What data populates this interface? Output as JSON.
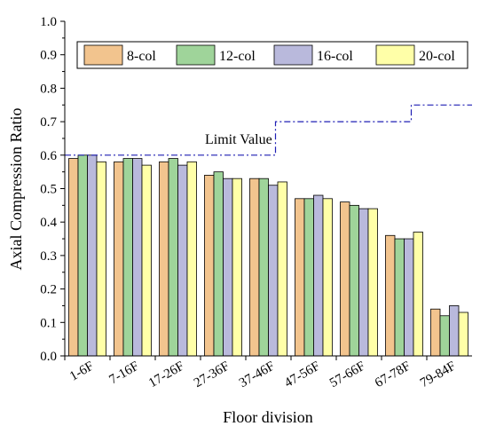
{
  "chart_data": {
    "type": "bar",
    "xlabel": "Floor division",
    "ylabel": "Axial Compression Ratio",
    "ylim": [
      0,
      1.0
    ],
    "yticks": [
      "0.0",
      "0.1",
      "0.2",
      "0.3",
      "0.4",
      "0.5",
      "0.6",
      "0.7",
      "0.8",
      "0.9",
      "1.0"
    ],
    "grid": false,
    "legend_position": "top",
    "categories": [
      "1-6F",
      "7-16F",
      "17-26F",
      "27-36F",
      "37-46F",
      "47-56F",
      "57-66F",
      "67-78F",
      "79-84F"
    ],
    "series": [
      {
        "name": "8-col",
        "color": "#f2c48e",
        "values": [
          0.59,
          0.58,
          0.58,
          0.54,
          0.53,
          0.47,
          0.46,
          0.36,
          0.14
        ]
      },
      {
        "name": "12-col",
        "color": "#9fd49a",
        "values": [
          0.6,
          0.59,
          0.59,
          0.55,
          0.53,
          0.47,
          0.45,
          0.35,
          0.12
        ]
      },
      {
        "name": "16-col",
        "color": "#b9b9dc",
        "values": [
          0.6,
          0.59,
          0.57,
          0.53,
          0.51,
          0.48,
          0.44,
          0.35,
          0.15
        ]
      },
      {
        "name": "20-col",
        "color": "#ffffa8",
        "values": [
          0.58,
          0.57,
          0.58,
          0.53,
          0.52,
          0.47,
          0.44,
          0.37,
          0.13
        ]
      }
    ],
    "limit_line": {
      "label": "Limit Value",
      "color": "#1f1fb4",
      "segments": [
        {
          "from_category": 0,
          "to_category": 4,
          "value": 0.6
        },
        {
          "from_category": 4,
          "to_category": 7,
          "value": 0.7
        },
        {
          "from_category": 7,
          "to_category": 8,
          "value": 0.75
        }
      ]
    }
  }
}
